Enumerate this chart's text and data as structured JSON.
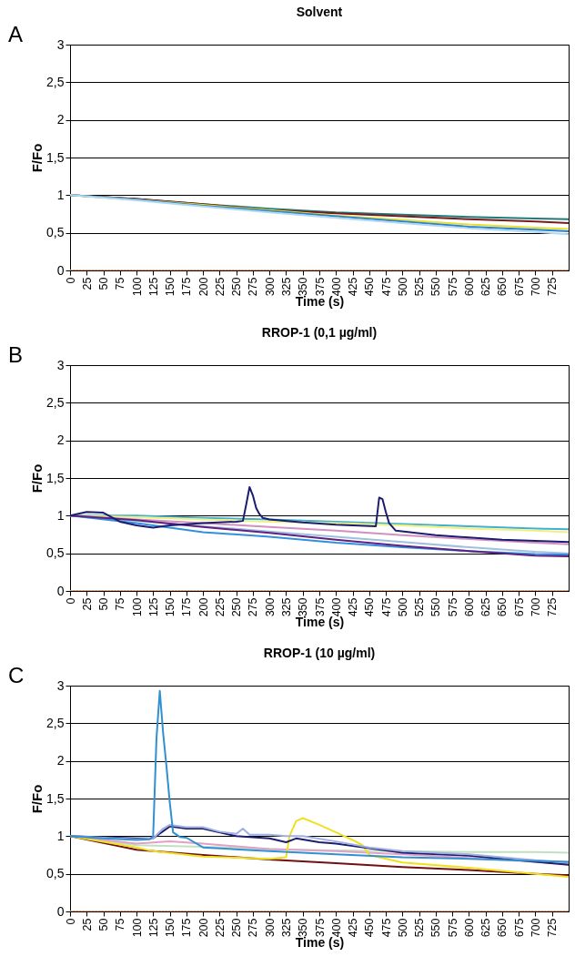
{
  "chart_data": [
    {
      "type": "line",
      "title": "Solvent",
      "xlabel": "Time (s)",
      "ylabel": "F/Fo",
      "annotations": [
        "A"
      ],
      "grid": "y",
      "xlim": [
        0,
        750
      ],
      "xticks": [
        0,
        25,
        50,
        75,
        100,
        125,
        150,
        175,
        200,
        225,
        250,
        275,
        300,
        325,
        350,
        375,
        400,
        425,
        450,
        475,
        500,
        525,
        550,
        575,
        600,
        625,
        650,
        675,
        700,
        725
      ],
      "ylim": [
        0,
        3
      ],
      "yticks": [
        0,
        {
          "value": 0.5,
          "label": "0,5"
        },
        1,
        {
          "value": 1.5,
          "label": "1,5"
        },
        2,
        {
          "value": 2.5,
          "label": "2,5"
        },
        3
      ],
      "series": [
        {
          "color": "#1f7a7a",
          "x": [
            0,
            100,
            200,
            300,
            400,
            500,
            600,
            700,
            750
          ],
          "values": [
            1,
            0.95,
            0.88,
            0.82,
            0.77,
            0.74,
            0.71,
            0.69,
            0.68
          ]
        },
        {
          "color": "#7a1a1a",
          "x": [
            0,
            100,
            200,
            300,
            400,
            500,
            600,
            700,
            750
          ],
          "values": [
            1,
            0.95,
            0.88,
            0.8,
            0.76,
            0.72,
            0.68,
            0.65,
            0.63
          ]
        },
        {
          "color": "#e8e030",
          "x": [
            0,
            100,
            200,
            300,
            400,
            500,
            600,
            700,
            750
          ],
          "values": [
            1,
            0.94,
            0.87,
            0.8,
            0.73,
            0.67,
            0.61,
            0.57,
            0.55
          ]
        },
        {
          "color": "#2a80d0",
          "x": [
            0,
            100,
            200,
            300,
            400,
            500,
            600,
            700,
            750
          ],
          "values": [
            1,
            0.94,
            0.86,
            0.79,
            0.72,
            0.65,
            0.58,
            0.54,
            0.52
          ]
        },
        {
          "color": "#b0d8f0",
          "x": [
            0,
            100,
            200,
            300,
            400,
            500,
            600,
            700,
            750
          ],
          "values": [
            1,
            0.93,
            0.85,
            0.77,
            0.7,
            0.63,
            0.56,
            0.51,
            0.48
          ]
        },
        {
          "color": "#e8a060",
          "line_style": "dotted",
          "x": [
            0,
            750
          ],
          "values": [
            0,
            0
          ]
        }
      ]
    },
    {
      "type": "line",
      "title": "RROP-1 (0,1 µg/ml)",
      "xlabel": "Time (s)",
      "ylabel": "F/Fo",
      "annotations": [
        "B"
      ],
      "grid": "y",
      "xlim": [
        0,
        750
      ],
      "xticks": [
        0,
        25,
        50,
        75,
        100,
        125,
        150,
        175,
        200,
        225,
        250,
        275,
        300,
        325,
        350,
        375,
        400,
        425,
        450,
        475,
        500,
        525,
        550,
        575,
        600,
        625,
        650,
        675,
        700,
        725
      ],
      "ylim": [
        0,
        3
      ],
      "yticks": [
        0,
        {
          "value": 0.5,
          "label": "0,5"
        },
        1,
        {
          "value": 1.5,
          "label": "1,5"
        },
        2,
        {
          "value": 2.5,
          "label": "2,5"
        },
        3
      ],
      "series": [
        {
          "color": "#40b0d0",
          "x": [
            0,
            100,
            200,
            300,
            400,
            500,
            600,
            700,
            750
          ],
          "values": [
            1,
            1,
            0.97,
            0.95,
            0.92,
            0.89,
            0.86,
            0.83,
            0.82
          ]
        },
        {
          "color": "#f0f080",
          "x": [
            0,
            100,
            200,
            300,
            400,
            500,
            600,
            700,
            750
          ],
          "values": [
            1,
            0.98,
            0.95,
            0.92,
            0.9,
            0.87,
            0.83,
            0.8,
            0.78
          ]
        },
        {
          "color": "#d090c0",
          "x": [
            0,
            100,
            200,
            300,
            400,
            500,
            600,
            700,
            750
          ],
          "values": [
            1,
            0.95,
            0.9,
            0.85,
            0.8,
            0.74,
            0.69,
            0.64,
            0.62
          ]
        },
        {
          "color": "#a0c0e0",
          "x": [
            0,
            100,
            200,
            300,
            400,
            500,
            600,
            700,
            750
          ],
          "values": [
            1,
            0.93,
            0.86,
            0.79,
            0.72,
            0.65,
            0.58,
            0.52,
            0.5
          ]
        },
        {
          "color": "#3090e0",
          "x": [
            0,
            100,
            200,
            300,
            400,
            500,
            600,
            700,
            750
          ],
          "values": [
            1,
            0.9,
            0.78,
            0.72,
            0.64,
            0.58,
            0.53,
            0.49,
            0.48
          ]
        },
        {
          "color": "#602080",
          "x": [
            0,
            100,
            200,
            300,
            400,
            500,
            600,
            700,
            750
          ],
          "values": [
            1,
            0.94,
            0.85,
            0.77,
            0.68,
            0.6,
            0.53,
            0.47,
            0.46
          ]
        },
        {
          "color": "#1c1c70",
          "x": [
            0,
            25,
            50,
            75,
            100,
            125,
            150,
            200,
            250,
            260,
            265,
            270,
            275,
            280,
            285,
            290,
            300,
            350,
            400,
            460,
            465,
            470,
            475,
            480,
            490,
            550,
            650,
            750
          ],
          "values": [
            1,
            1.05,
            1.04,
            0.92,
            0.87,
            0.84,
            0.87,
            0.9,
            0.92,
            0.93,
            1.15,
            1.38,
            1.27,
            1.1,
            1.02,
            0.97,
            0.95,
            0.91,
            0.88,
            0.86,
            1.24,
            1.22,
            1.05,
            0.9,
            0.8,
            0.74,
            0.68,
            0.65
          ]
        },
        {
          "color": "#e8a060",
          "line_style": "dotted",
          "x": [
            0,
            750
          ],
          "values": [
            0,
            0
          ]
        }
      ]
    },
    {
      "type": "line",
      "title": "RROP-1 (10 µg/ml)",
      "xlabel": "Time (s)",
      "ylabel": "F/Fo",
      "annotations": [
        "C"
      ],
      "grid": "y",
      "xlim": [
        0,
        750
      ],
      "xticks": [
        0,
        25,
        50,
        75,
        100,
        125,
        150,
        175,
        200,
        225,
        250,
        275,
        300,
        325,
        350,
        375,
        400,
        425,
        450,
        475,
        500,
        525,
        550,
        575,
        600,
        625,
        650,
        675,
        700,
        725
      ],
      "ylim": [
        0,
        3
      ],
      "yticks": [
        0,
        {
          "value": 0.5,
          "label": "0,5"
        },
        1,
        {
          "value": 1.5,
          "label": "1,5"
        },
        2,
        {
          "value": 2.5,
          "label": "2,5"
        },
        3
      ],
      "series": [
        {
          "color": "#c0e0c0",
          "x": [
            0,
            100,
            200,
            300,
            400,
            500,
            600,
            700,
            750
          ],
          "values": [
            1,
            0.88,
            0.86,
            0.83,
            0.81,
            0.8,
            0.79,
            0.79,
            0.78
          ]
        },
        {
          "color": "#e0a0c8",
          "x": [
            0,
            100,
            150,
            200,
            300,
            400,
            500,
            600,
            700,
            750
          ],
          "values": [
            1,
            0.9,
            0.93,
            0.9,
            0.83,
            0.8,
            0.76,
            0.71,
            0.66,
            0.63
          ]
        },
        {
          "color": "#701010",
          "x": [
            0,
            100,
            200,
            300,
            400,
            500,
            600,
            700,
            750
          ],
          "values": [
            1,
            0.82,
            0.75,
            0.69,
            0.64,
            0.59,
            0.55,
            0.5,
            0.48
          ]
        },
        {
          "color": "#f0e020",
          "x": [
            0,
            100,
            125,
            200,
            300,
            325,
            330,
            340,
            350,
            375,
            400,
            425,
            440,
            450,
            500,
            600,
            700,
            750
          ],
          "values": [
            1,
            0.85,
            0.8,
            0.73,
            0.7,
            0.72,
            1,
            1.2,
            1.24,
            1.15,
            1.05,
            0.95,
            0.88,
            0.75,
            0.65,
            0.58,
            0.5,
            0.46
          ]
        },
        {
          "color": "#1c1c70",
          "x": [
            0,
            100,
            125,
            150,
            175,
            200,
            250,
            300,
            325,
            340,
            375,
            400,
            500,
            600,
            700,
            750
          ],
          "values": [
            1,
            0.97,
            0.97,
            1.13,
            1.1,
            1.1,
            1,
            0.97,
            0.92,
            0.97,
            0.92,
            0.9,
            0.78,
            0.74,
            0.66,
            0.62
          ]
        },
        {
          "color": "#a0b0e0",
          "x": [
            0,
            100,
            125,
            140,
            150,
            175,
            200,
            225,
            250,
            260,
            270,
            300,
            325,
            350,
            400,
            450,
            500,
            600,
            700,
            750
          ],
          "values": [
            1,
            0.96,
            0.97,
            1.1,
            1.15,
            1.12,
            1.12,
            1.06,
            1.03,
            1.1,
            1.02,
            1.02,
            1,
            1,
            0.93,
            0.85,
            0.8,
            0.76,
            0.68,
            0.65
          ]
        },
        {
          "color": "#3090d0",
          "x": [
            0,
            50,
            100,
            120,
            125,
            130,
            135,
            140,
            145,
            150,
            155,
            165,
            175,
            200,
            300,
            400,
            500,
            600,
            700,
            750
          ],
          "values": [
            1,
            0.97,
            0.95,
            0.96,
            1,
            2.3,
            2.93,
            2.37,
            1.93,
            1.45,
            1.05,
            0.99,
            0.98,
            0.85,
            0.8,
            0.76,
            0.72,
            0.7,
            0.67,
            0.66
          ]
        },
        {
          "color": "#e8a060",
          "line_style": "dotted",
          "x": [
            0,
            750
          ],
          "values": [
            0,
            0
          ]
        }
      ]
    }
  ]
}
